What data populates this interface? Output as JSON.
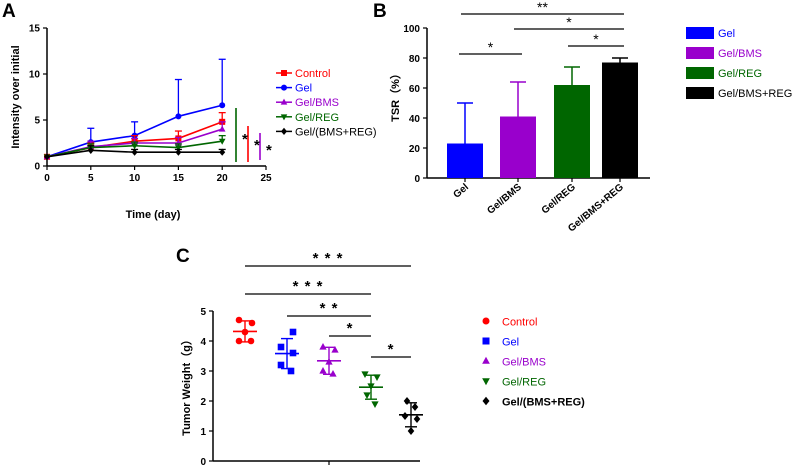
{
  "panels": {
    "A": {
      "letter": "A"
    },
    "B": {
      "letter": "B"
    },
    "C": {
      "letter": "C"
    }
  },
  "colors": {
    "Control": "#ff0000",
    "Gel": "#0000ff",
    "Gel/BMS": "#9900cc",
    "Gel/REG": "#006600",
    "Gel/(BMS+REG)": "#000000"
  },
  "chart_data": [
    {
      "id": "A",
      "type": "line",
      "title": "",
      "xlabel": "Time (day)",
      "ylabel": "Intensity over initial",
      "xlim": [
        0,
        25
      ],
      "ylim": [
        0,
        15
      ],
      "xticks": [
        0,
        5,
        10,
        15,
        20,
        25
      ],
      "yticks": [
        0,
        5,
        10,
        15
      ],
      "x": [
        0,
        5,
        10,
        15,
        20
      ],
      "series": [
        {
          "name": "Control",
          "marker": "square",
          "values": [
            1,
            2.0,
            2.7,
            3.0,
            4.8
          ],
          "err": [
            0.1,
            0.5,
            0.6,
            0.8,
            1.0
          ]
        },
        {
          "name": "Gel",
          "marker": "circle",
          "values": [
            1,
            2.6,
            3.3,
            5.4,
            6.6
          ],
          "err": [
            0.1,
            1.5,
            1.5,
            4.0,
            5.0
          ]
        },
        {
          "name": "Gel/BMS",
          "marker": "triangle-up",
          "values": [
            1,
            2.1,
            2.5,
            2.5,
            4.0
          ],
          "err": [
            0.1,
            0.6,
            0.5,
            0.6,
            0.8
          ]
        },
        {
          "name": "Gel/REG",
          "marker": "triangle-down",
          "values": [
            1,
            2.0,
            2.2,
            2.0,
            2.7
          ],
          "err": [
            0.1,
            0.4,
            0.4,
            0.4,
            0.6
          ]
        },
        {
          "name": "Gel/(BMS+REG)",
          "marker": "diamond",
          "values": [
            1,
            1.7,
            1.5,
            1.5,
            1.5
          ],
          "err": [
            0.1,
            0.5,
            0.3,
            0.3,
            0.3
          ]
        }
      ],
      "significance": [
        "*",
        "*",
        "*"
      ]
    },
    {
      "id": "B",
      "type": "bar",
      "title": "",
      "xlabel": "",
      "ylabel": "TSR（%）",
      "ylim": [
        0,
        100
      ],
      "yticks": [
        0,
        20,
        40,
        60,
        80,
        100
      ],
      "categories": [
        "Gel",
        "Gel/BMS",
        "Gel/REG",
        "Gel/BMS+REG"
      ],
      "values": [
        23,
        41,
        62,
        77
      ],
      "err": [
        27,
        23,
        12,
        3
      ],
      "legend": [
        "Gel",
        "Gel/BMS",
        "Gel/REG",
        "Gel/BMS+REG"
      ],
      "significance": [
        {
          "from": "Gel",
          "to": "Gel/BMS",
          "label": "*"
        },
        {
          "from": "Gel/REG",
          "to": "Gel/BMS+REG",
          "label": "*"
        },
        {
          "from": "Gel/BMS",
          "to": "Gel/BMS+REG",
          "label": "*"
        },
        {
          "from": "Gel",
          "to": "Gel/BMS+REG",
          "label": "**"
        }
      ]
    },
    {
      "id": "C",
      "type": "scatter",
      "title": "",
      "xlabel": "",
      "ylabel": "Tumor Weight（g）",
      "ylim": [
        0,
        5
      ],
      "yticks": [
        0,
        1,
        2,
        3,
        4,
        5
      ],
      "series": [
        {
          "name": "Control",
          "marker": "circle",
          "points": [
            4.7,
            4.6,
            4.3,
            4.0,
            4.0
          ],
          "mean": 4.32,
          "sd": 0.35
        },
        {
          "name": "Gel",
          "marker": "square",
          "points": [
            4.3,
            3.8,
            3.6,
            3.2,
            3.0
          ],
          "mean": 3.58,
          "sd": 0.5
        },
        {
          "name": "Gel/BMS",
          "marker": "triangle-up",
          "points": [
            3.8,
            3.7,
            3.3,
            3.0,
            2.9
          ],
          "mean": 3.34,
          "sd": 0.45
        },
        {
          "name": "Gel/REG",
          "marker": "triangle-down",
          "points": [
            2.9,
            2.8,
            2.5,
            2.2,
            1.9
          ],
          "mean": 2.46,
          "sd": 0.4
        },
        {
          "name": "Gel/(BMS+REG)",
          "marker": "diamond",
          "points": [
            2.0,
            1.8,
            1.5,
            1.4,
            1.0
          ],
          "mean": 1.54,
          "sd": 0.4
        }
      ],
      "significance": [
        {
          "from": "Control",
          "to": "Gel/(BMS+REG)",
          "label": "* * *"
        },
        {
          "from": "Control",
          "to": "Gel/REG",
          "label": "* * *"
        },
        {
          "from": "Gel",
          "to": "Gel/REG",
          "label": "* *"
        },
        {
          "from": "Gel/BMS",
          "to": "Gel/REG",
          "label": "*"
        },
        {
          "from": "Gel/REG",
          "to": "Gel/(BMS+REG)",
          "label": "*"
        }
      ]
    }
  ]
}
